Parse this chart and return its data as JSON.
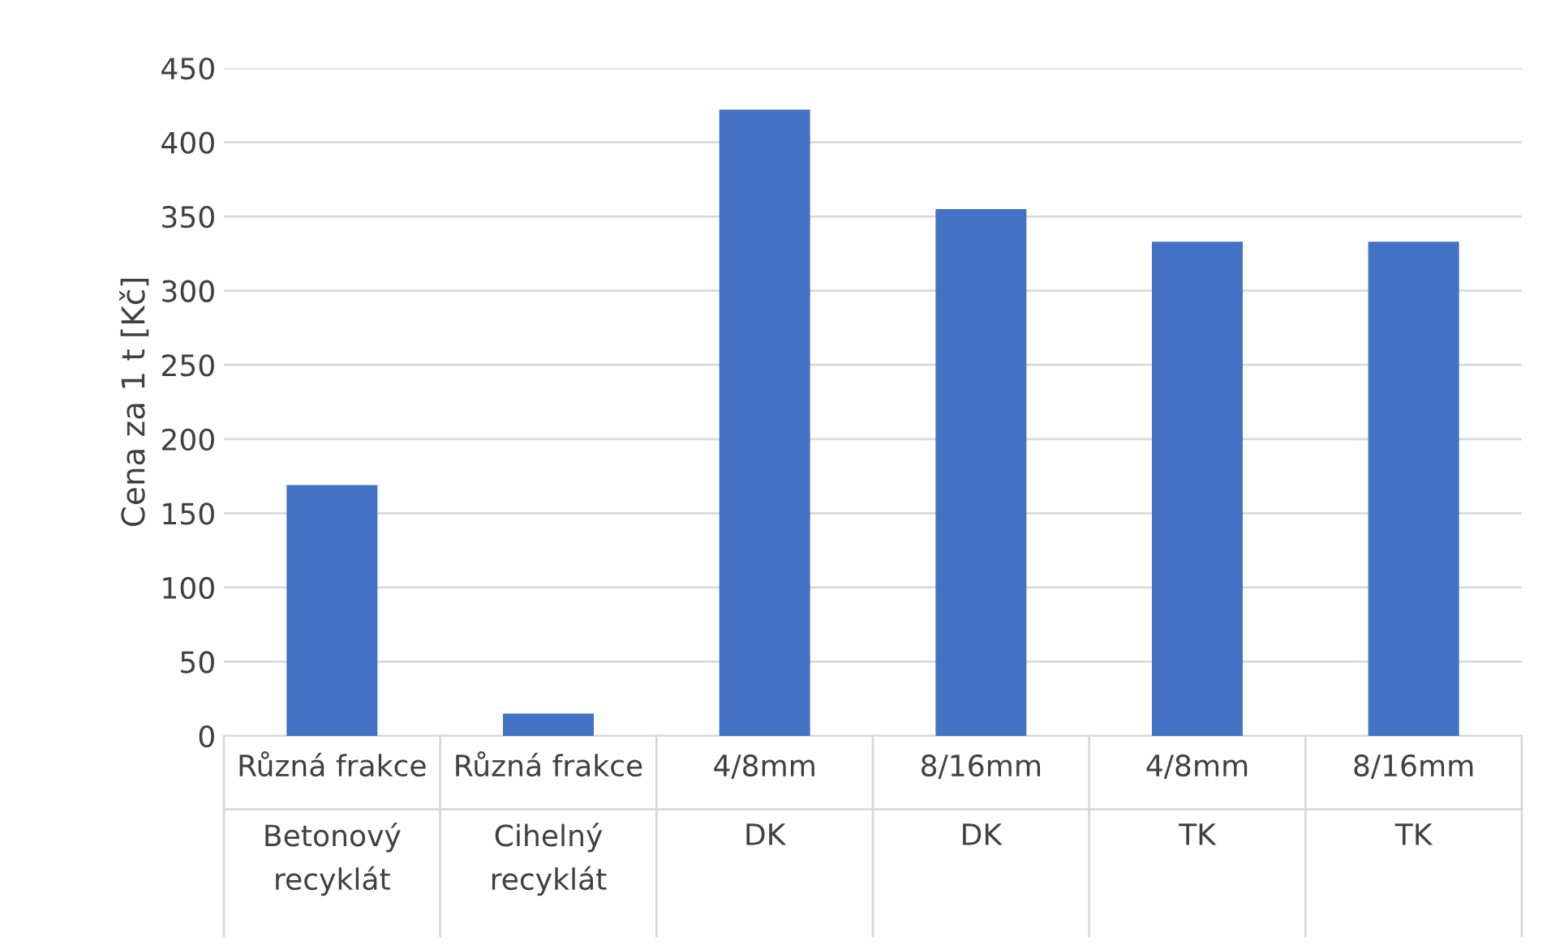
{
  "chart_data": {
    "type": "bar",
    "ylabel": "Cena za 1 t [Kč]",
    "categories": [
      "Různá frakce",
      "Různá frakce",
      "4/8mm",
      "8/16mm",
      "4/8mm",
      "8/16mm"
    ],
    "annotations": [
      "Betonový\nrecyklát",
      "Cihelný\nrecyklát",
      "DK",
      "DK",
      "TK",
      "TK"
    ],
    "values": [
      169,
      15,
      422,
      355,
      333,
      333
    ],
    "color": "#4472c4",
    "ylim": [
      0,
      450
    ],
    "yticks": [
      0,
      50,
      100,
      150,
      200,
      250,
      300,
      350,
      400,
      450
    ],
    "grid": "y"
  }
}
